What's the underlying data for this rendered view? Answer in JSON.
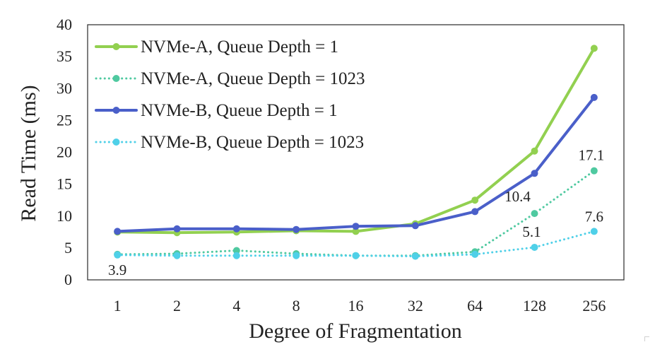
{
  "chart_data": {
    "type": "line",
    "title": "",
    "xlabel": "Degree of Fragmentation",
    "ylabel": "Read Time (ms)",
    "categories": [
      "1",
      "2",
      "4",
      "8",
      "16",
      "32",
      "64",
      "128",
      "256"
    ],
    "ylim": [
      0,
      40
    ],
    "yticks": [
      0,
      5,
      10,
      15,
      20,
      25,
      30,
      35,
      40
    ],
    "grid": false,
    "legend_position": "top-left",
    "series": [
      {
        "name": "NVMe-A, Queue Depth = 1",
        "color": "#92d050",
        "style": "solid",
        "values": [
          7.5,
          7.4,
          7.5,
          7.7,
          7.6,
          8.8,
          12.5,
          20.2,
          36.3
        ]
      },
      {
        "name": "NVMe-A, Queue Depth = 1023",
        "color": "#4fc9a0",
        "style": "dotted",
        "values": [
          4.0,
          4.1,
          4.6,
          4.1,
          3.8,
          3.8,
          4.4,
          10.4,
          17.1
        ]
      },
      {
        "name": "NVMe-B, Queue Depth = 1",
        "color": "#4a5fc9",
        "style": "solid",
        "values": [
          7.6,
          8.0,
          8.0,
          7.9,
          8.4,
          8.5,
          10.7,
          16.7,
          28.6
        ]
      },
      {
        "name": "NVMe-B, Queue Depth = 1023",
        "color": "#4fd0e8",
        "style": "dotted",
        "values": [
          3.9,
          3.8,
          3.8,
          3.8,
          3.8,
          3.7,
          4.0,
          5.1,
          7.6
        ]
      }
    ],
    "annotations": [
      {
        "text": "3.9",
        "series": 3,
        "index": 0
      },
      {
        "text": "10.4",
        "series": 1,
        "index": 7
      },
      {
        "text": "17.1",
        "series": 1,
        "index": 8
      },
      {
        "text": "5.1",
        "series": 3,
        "index": 7
      },
      {
        "text": "7.6",
        "series": 3,
        "index": 8
      }
    ]
  }
}
